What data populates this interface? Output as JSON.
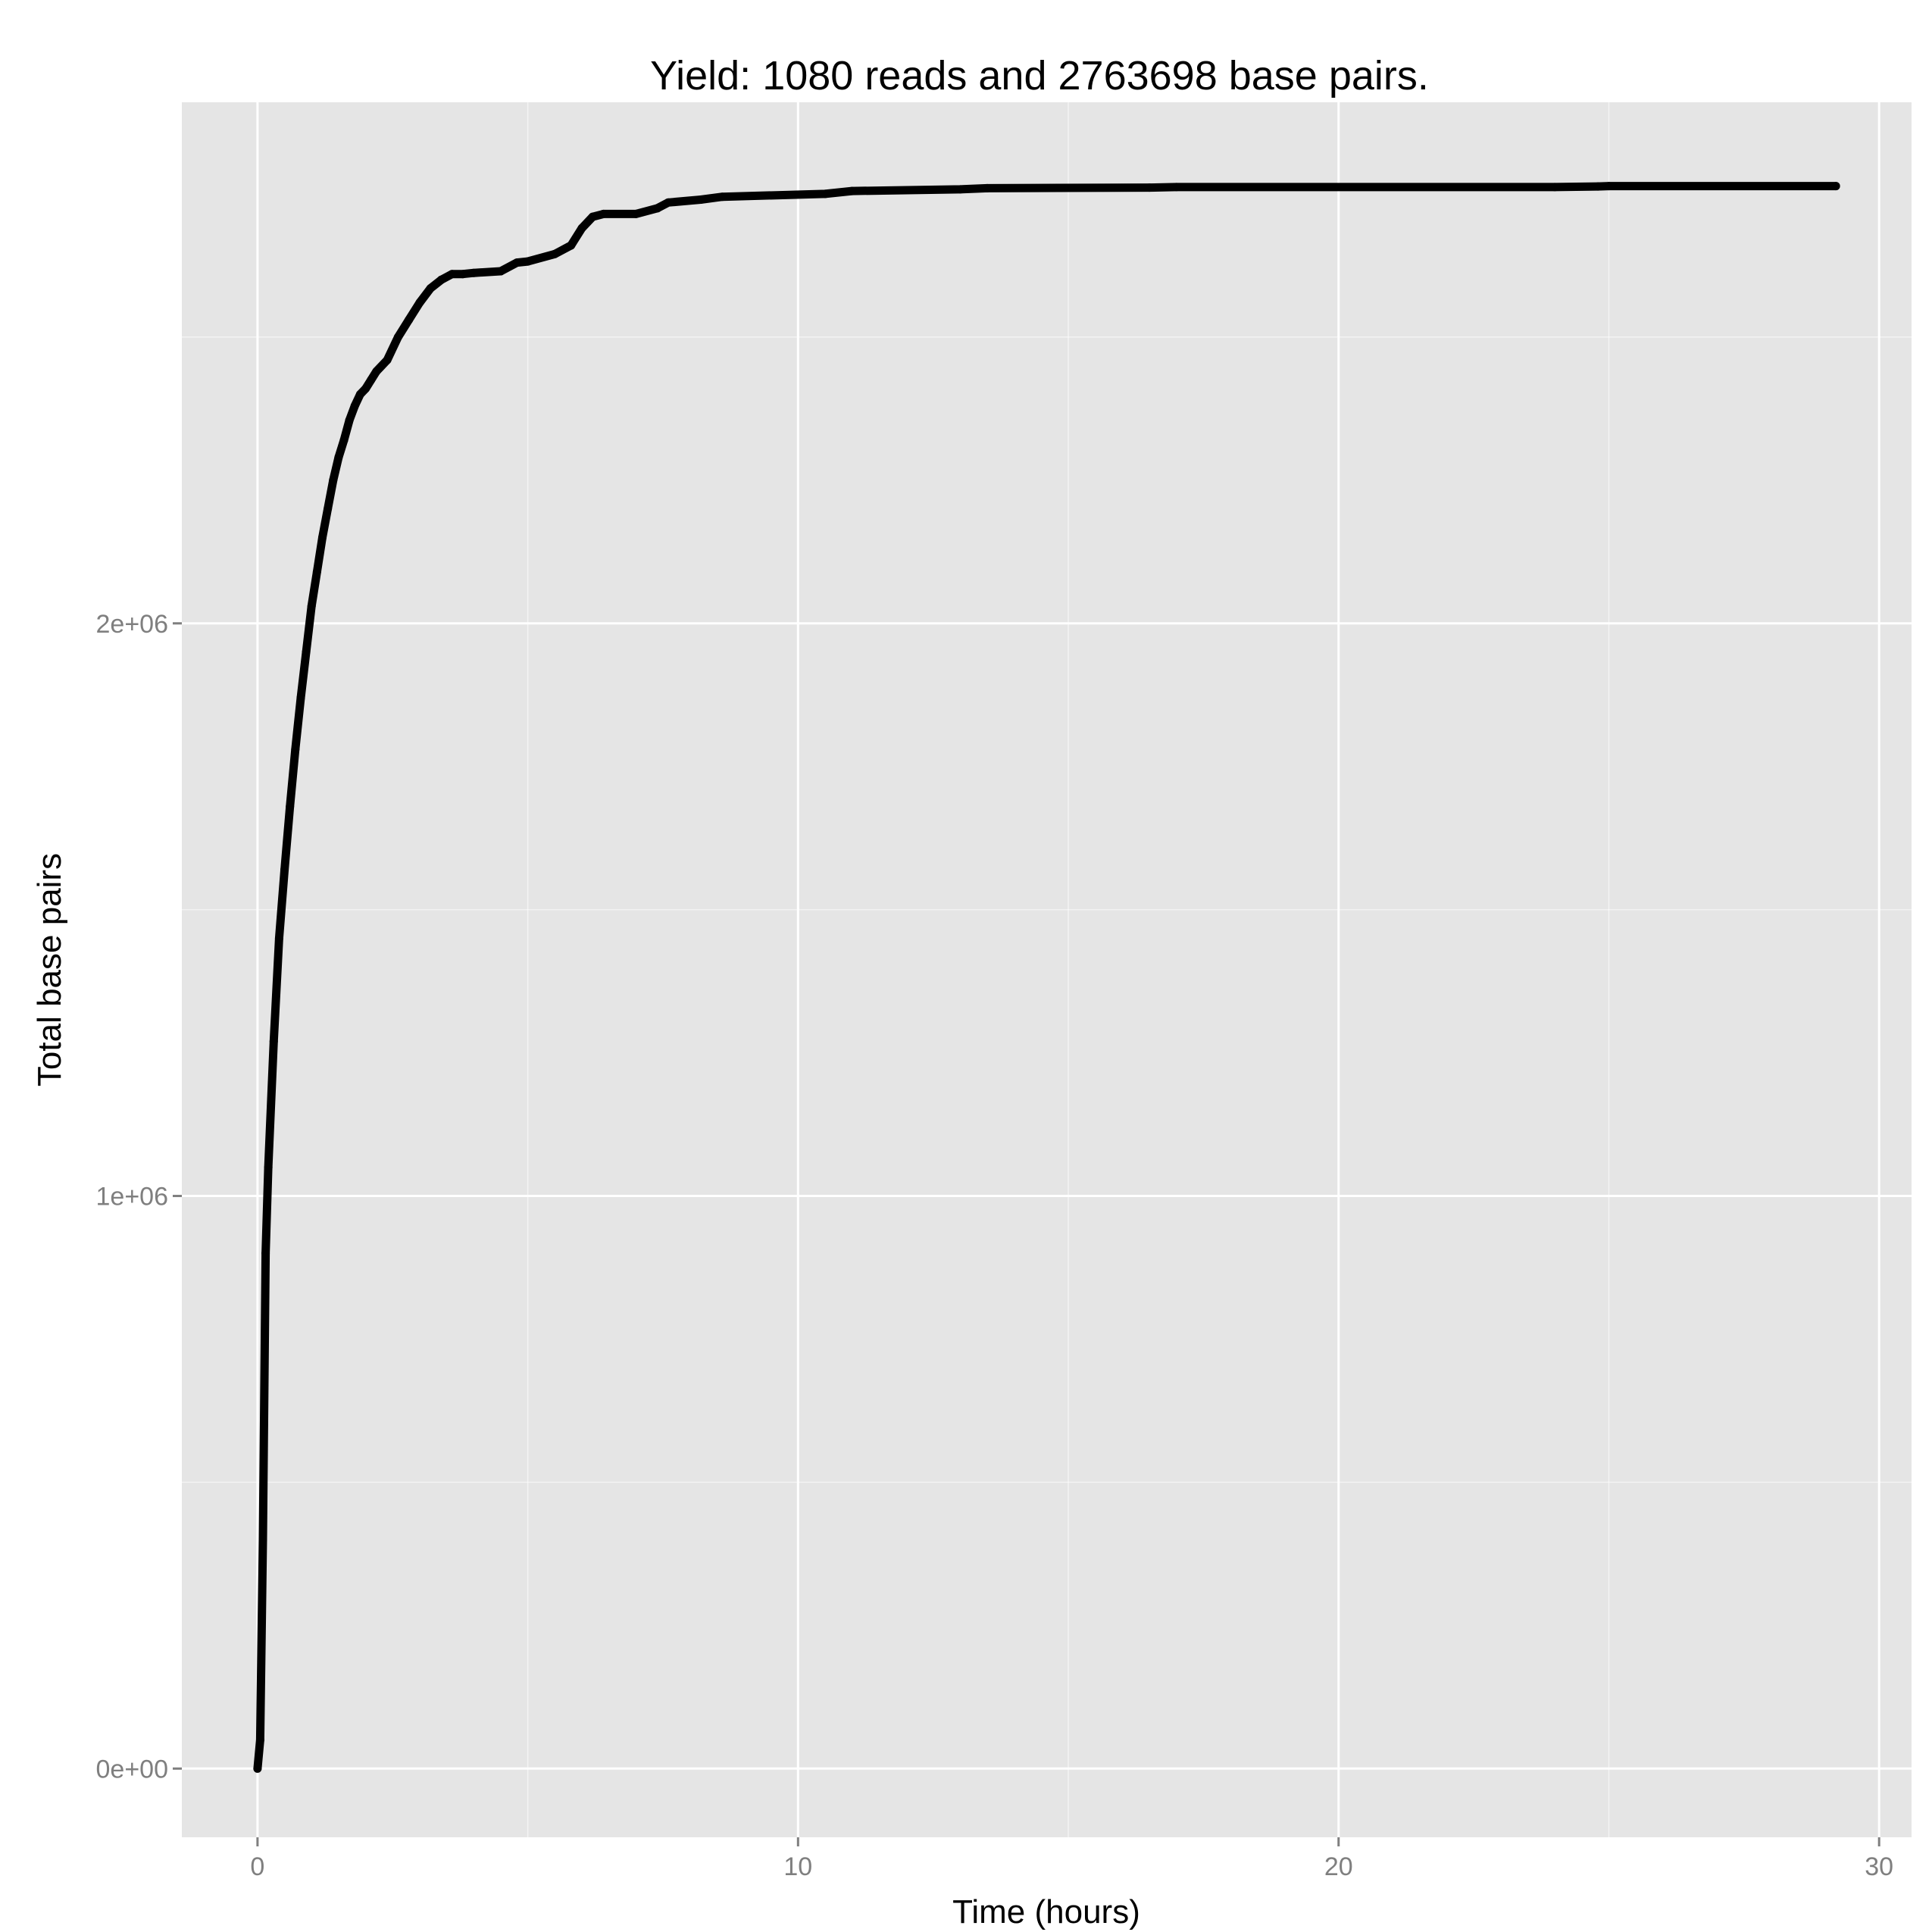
{
  "chart_data": {
    "type": "line",
    "title": "Yield: 1080 reads and 2763698 base pairs.",
    "xlabel": "Time (hours)",
    "ylabel": "Total base pairs",
    "xlim": [
      -1.4,
      30.6
    ],
    "ylim": [
      -120000,
      2910000
    ],
    "x_ticks": [
      0,
      10,
      20,
      30
    ],
    "x_tick_labels": [
      "0",
      "10",
      "20",
      "30"
    ],
    "y_ticks": [
      0,
      1000000,
      2000000
    ],
    "y_tick_labels": [
      "0e+00",
      "1e+06",
      "2e+06"
    ],
    "grid": true,
    "legend": "none",
    "colors": {
      "panel": "#e5e5e5",
      "grid": "#ffffff",
      "line": "#000000",
      "tick": "#7f7f7f"
    },
    "series": [
      {
        "x": [
          0,
          0.05,
          0.1,
          0.15,
          0.2,
          0.3,
          0.4,
          0.5,
          0.6,
          0.7,
          0.8,
          0.9,
          1.0,
          1.1,
          1.2,
          1.3,
          1.4,
          1.5,
          1.6,
          1.7,
          1.8,
          1.9,
          2.0,
          2.1,
          2.2,
          2.4,
          2.6,
          2.8,
          3.0,
          3.2,
          3.4,
          3.6,
          3.8,
          4.0,
          4.5,
          4.8,
          5.0,
          5.5,
          5.8,
          6.0,
          6.2,
          6.4,
          7.0,
          7.4,
          7.6,
          8.2,
          8.6,
          10.5,
          11.0,
          13.0,
          13.5,
          16.5,
          17.0,
          24.0,
          24.8,
          25.0,
          29.2
        ],
        "y": [
          0,
          50000,
          400000,
          900000,
          1050000,
          1270000,
          1450000,
          1570000,
          1680000,
          1780000,
          1870000,
          1950000,
          2030000,
          2090000,
          2150000,
          2200000,
          2250000,
          2290000,
          2320000,
          2355000,
          2380000,
          2400000,
          2410000,
          2425000,
          2440000,
          2460000,
          2500000,
          2530000,
          2560000,
          2585000,
          2600000,
          2610000,
          2610000,
          2612000,
          2615000,
          2630000,
          2632000,
          2645000,
          2660000,
          2690000,
          2710000,
          2715000,
          2715000,
          2725000,
          2735000,
          2740000,
          2745000,
          2750000,
          2755000,
          2758000,
          2760000,
          2761000,
          2762000,
          2762000,
          2763000,
          2763698,
          2763698
        ]
      }
    ]
  }
}
